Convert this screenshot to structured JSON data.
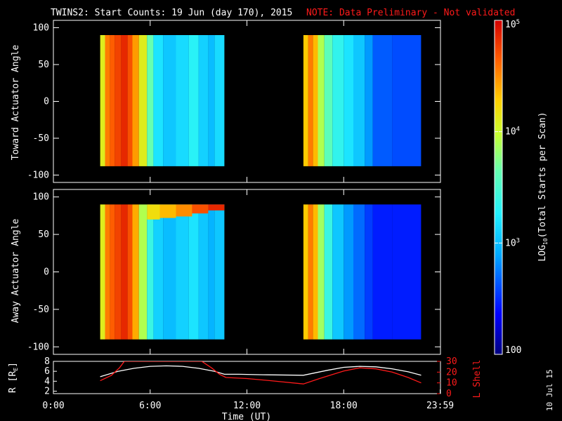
{
  "header": {
    "title": "TWINS2: Start Counts: 19 Jun (day 170), 2015",
    "note": "NOTE: Data Preliminary - Not validated"
  },
  "footer": {
    "date_stamp": "10 Jul 15"
  },
  "colors": {
    "background": "#000000",
    "text": "#ffffff",
    "note": "#ff1a1a",
    "r_line": "#ffffff",
    "lshell_line": "#ff1a1a"
  },
  "chart_data": [
    {
      "type": "heatmap",
      "name": "toward",
      "ylabel": "Toward Actuator Angle",
      "ylim": [
        -110,
        110
      ],
      "yticks": [
        100,
        50,
        0,
        -50,
        -100
      ],
      "xlim": [
        0,
        24
      ],
      "angle_range": [
        -88,
        90
      ],
      "gaps": [
        [
          0,
          2.9
        ],
        [
          10.6,
          15.5
        ],
        [
          22.8,
          24
        ]
      ],
      "columns": [
        {
          "t": [
            2.9,
            3.2
          ],
          "v": 4.1
        },
        {
          "t": [
            3.2,
            3.5
          ],
          "v": 4.55
        },
        {
          "t": [
            3.5,
            3.8
          ],
          "v": 4.65
        },
        {
          "t": [
            3.8,
            4.2
          ],
          "v": 4.75
        },
        {
          "t": [
            4.2,
            4.6
          ],
          "v": 4.85
        },
        {
          "t": [
            4.6,
            4.9
          ],
          "v": 4.7
        },
        {
          "t": [
            4.9,
            5.3
          ],
          "v": 4.45
        },
        {
          "t": [
            5.3,
            5.8
          ],
          "v": 4.1
        },
        {
          "t": [
            5.8,
            6.2
          ],
          "v": 3.65
        },
        {
          "t": [
            6.2,
            6.8
          ],
          "v": 3.2
        },
        {
          "t": [
            6.8,
            7.6
          ],
          "v": 3.05
        },
        {
          "t": [
            7.6,
            8.4
          ],
          "v": 3.15
        },
        {
          "t": [
            8.4,
            9.0
          ],
          "v": 3.3
        },
        {
          "t": [
            9.0,
            9.6
          ],
          "v": 3.1
        },
        {
          "t": [
            9.6,
            10.0
          ],
          "v": 3.0
        },
        {
          "t": [
            10.0,
            10.6
          ],
          "v": 3.15
        },
        {
          "t": [
            15.5,
            15.8
          ],
          "v": 4.3
        },
        {
          "t": [
            15.8,
            16.1
          ],
          "v": 4.55
        },
        {
          "t": [
            16.1,
            16.4
          ],
          "v": 4.35
        },
        {
          "t": [
            16.4,
            16.8
          ],
          "v": 3.9
        },
        {
          "t": [
            16.8,
            17.3
          ],
          "v": 3.6
        },
        {
          "t": [
            17.3,
            18.0
          ],
          "v": 3.35
        },
        {
          "t": [
            18.0,
            18.6
          ],
          "v": 3.2
        },
        {
          "t": [
            18.6,
            19.3
          ],
          "v": 3.05
        },
        {
          "t": [
            19.3,
            19.8
          ],
          "v": 2.85
        },
        {
          "t": [
            19.8,
            21.0
          ],
          "v": 2.65
        },
        {
          "t": [
            21.0,
            22.8
          ],
          "v": 2.6
        }
      ]
    },
    {
      "type": "heatmap",
      "name": "away",
      "ylabel": "Away Actuator Angle",
      "ylim": [
        -110,
        110
      ],
      "yticks": [
        100,
        50,
        0,
        -50,
        -100
      ],
      "xlim": [
        0,
        24
      ],
      "angle_range": [
        -90,
        90
      ],
      "gaps": [
        [
          0,
          2.9
        ],
        [
          10.6,
          15.5
        ],
        [
          22.8,
          24
        ]
      ],
      "columns": [
        {
          "t": [
            2.9,
            3.2
          ],
          "v": 4.1
        },
        {
          "t": [
            3.2,
            3.5
          ],
          "v": 4.55
        },
        {
          "t": [
            3.5,
            3.8
          ],
          "v": 4.65
        },
        {
          "t": [
            3.8,
            4.2
          ],
          "v": 4.75
        },
        {
          "t": [
            4.2,
            4.6
          ],
          "v": 4.85
        },
        {
          "t": [
            4.6,
            4.9
          ],
          "v": 4.7
        },
        {
          "t": [
            4.9,
            5.3
          ],
          "v": 4.4
        },
        {
          "t": [
            5.3,
            5.8
          ],
          "v": 3.9
        },
        {
          "t": [
            5.8,
            6.2
          ],
          "v": 3.4
        },
        {
          "t": [
            6.2,
            6.8
          ],
          "v": 3.1
        },
        {
          "t": [
            6.8,
            7.6
          ],
          "v": 3.0
        },
        {
          "t": [
            7.6,
            8.4
          ],
          "v": 3.1
        },
        {
          "t": [
            8.4,
            9.0
          ],
          "v": 3.2
        },
        {
          "t": [
            9.0,
            9.6
          ],
          "v": 3.05
        },
        {
          "t": [
            9.6,
            10.0
          ],
          "v": 2.95
        },
        {
          "t": [
            10.0,
            10.6
          ],
          "v": 3.05
        },
        {
          "t": [
            15.5,
            15.8
          ],
          "v": 4.3
        },
        {
          "t": [
            15.8,
            16.1
          ],
          "v": 4.55
        },
        {
          "t": [
            16.1,
            16.4
          ],
          "v": 4.35
        },
        {
          "t": [
            16.4,
            16.8
          ],
          "v": 3.85
        },
        {
          "t": [
            16.8,
            17.3
          ],
          "v": 3.4
        },
        {
          "t": [
            17.3,
            18.0
          ],
          "v": 3.05
        },
        {
          "t": [
            18.0,
            18.6
          ],
          "v": 2.85
        },
        {
          "t": [
            18.6,
            19.3
          ],
          "v": 2.7
        },
        {
          "t": [
            19.3,
            19.8
          ],
          "v": 2.55
        },
        {
          "t": [
            19.8,
            21.0
          ],
          "v": 2.45
        },
        {
          "t": [
            21.0,
            22.8
          ],
          "v": 2.45
        }
      ],
      "enhancement": [
        {
          "t": [
            5.8,
            6.6
          ],
          "angle": [
            70,
            90
          ],
          "v": 4.2
        },
        {
          "t": [
            6.6,
            7.6
          ],
          "angle": [
            72,
            90
          ],
          "v": 4.35
        },
        {
          "t": [
            7.6,
            8.6
          ],
          "angle": [
            74,
            90
          ],
          "v": 4.5
        },
        {
          "t": [
            8.6,
            9.6
          ],
          "angle": [
            78,
            90
          ],
          "v": 4.7
        },
        {
          "t": [
            9.6,
            10.6
          ],
          "angle": [
            82,
            90
          ],
          "v": 4.85
        }
      ]
    },
    {
      "type": "line",
      "name": "ephemeris",
      "xlabel": "Time (UT)",
      "xticks": [
        "0:00",
        "6:00",
        "12:00",
        "18:00",
        "23:59"
      ],
      "xtick_values": [
        0,
        6,
        12,
        18,
        23.98
      ],
      "xlim": [
        0,
        24
      ],
      "ylabel_left": "R [R",
      "ylabel_left_sub": "E",
      "ylabel_left_end": "]",
      "ylabel_right": "L Shell",
      "left_ylim": [
        1.5,
        8
      ],
      "left_yticks": [
        8,
        6,
        4,
        2
      ],
      "right_ylim": [
        0,
        30
      ],
      "right_yticks": [
        30,
        20,
        10,
        0
      ],
      "series": [
        {
          "axis": "left",
          "x": [
            2.9,
            4.0,
            5.0,
            6.0,
            7.0,
            8.0,
            9.0,
            10.0,
            10.6,
            11.5,
            13.0,
            15.5,
            17.0,
            18.0,
            19.0,
            20.0,
            21.0,
            22.0,
            22.8
          ],
          "y": [
            4.9,
            6.0,
            6.6,
            7.0,
            7.1,
            7.0,
            6.6,
            6.0,
            5.4,
            5.4,
            5.3,
            5.2,
            6.2,
            6.8,
            7.0,
            6.9,
            6.5,
            5.9,
            5.2
          ]
        },
        {
          "axis": "right",
          "x": [
            2.9,
            3.6,
            4.1,
            4.4,
            9.2,
            9.8,
            10.3,
            10.7,
            12.0,
            13.5,
            15.5,
            16.5,
            18.0,
            19.0,
            20.0,
            21.0,
            22.0,
            22.8
          ],
          "y": [
            12.0,
            17.0,
            24.0,
            30.0,
            30.0,
            24.0,
            18.0,
            15.0,
            14.0,
            12.0,
            9.0,
            14.0,
            21.0,
            24.0,
            23.0,
            20.0,
            15.0,
            10.0
          ]
        }
      ]
    },
    {
      "type": "colorbar",
      "label_pre": "LOG",
      "label_sub": "10",
      "label_post": "(Total Starts per Scan)",
      "range": [
        2,
        5
      ],
      "ticks": [
        {
          "v": 5,
          "label": "10",
          "sup": "5"
        },
        {
          "v": 4,
          "label": "10",
          "sup": "4"
        },
        {
          "v": 3,
          "label": "10",
          "sup": "3"
        },
        {
          "v": 2,
          "label": "100",
          "sup": ""
        }
      ]
    }
  ]
}
